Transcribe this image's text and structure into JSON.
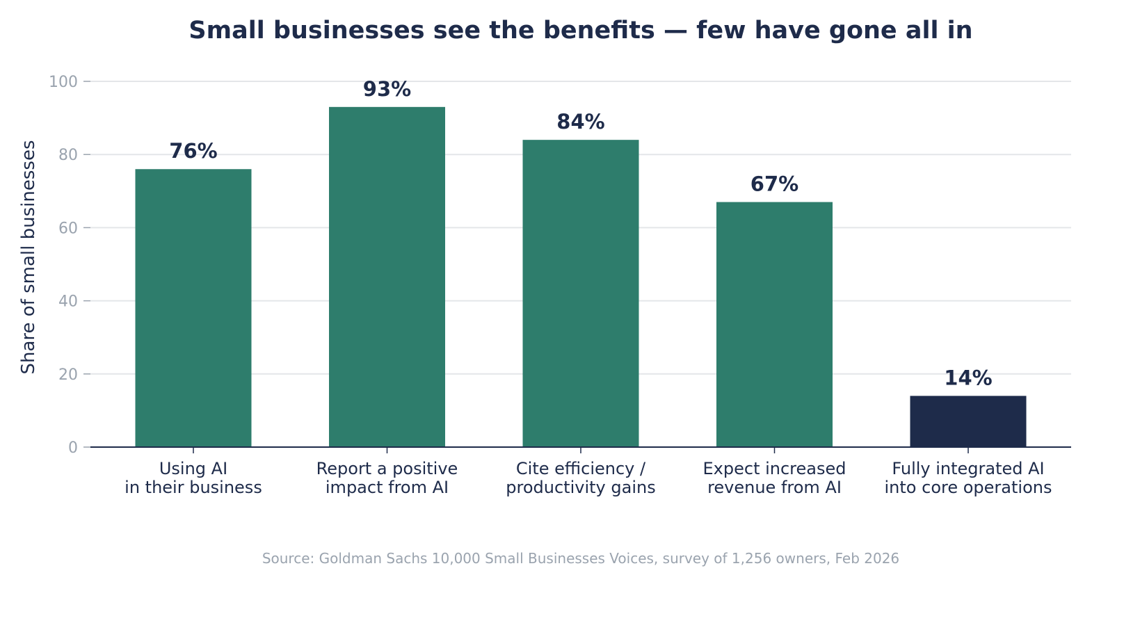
{
  "chart_data": {
    "type": "bar",
    "title": "Small businesses see the benefits — few have gone all in",
    "ylabel": "Share of small businesses",
    "xlabel": "",
    "ylim": [
      0,
      100
    ],
    "yticks": [
      0,
      20,
      40,
      60,
      80,
      100
    ],
    "grid": "horizontal",
    "categories": [
      [
        "Using AI",
        "in their business"
      ],
      [
        "Report a positive",
        "impact from AI"
      ],
      [
        "Cite efficiency /",
        "productivity gains"
      ],
      [
        "Expect increased",
        "revenue from AI"
      ],
      [
        "Fully integrated AI",
        "into core operations"
      ]
    ],
    "values": [
      76,
      93,
      84,
      67,
      14
    ],
    "value_labels": [
      "76%",
      "93%",
      "84%",
      "67%",
      "14%"
    ],
    "bar_colors": [
      "#2e7d6c",
      "#2e7d6c",
      "#2e7d6c",
      "#2e7d6c",
      "#1e2b4a"
    ],
    "source": "Source: Goldman Sachs 10,000 Small Businesses Voices, survey of 1,256 owners, Feb 2026"
  },
  "colors": {
    "title": "#1e2b4a",
    "axis_text": "#1e2b4a",
    "tick_text": "#9aa3ae",
    "grid": "#e4e6e9",
    "baseline": "#1e2b4a",
    "source": "#9aa3ae"
  }
}
